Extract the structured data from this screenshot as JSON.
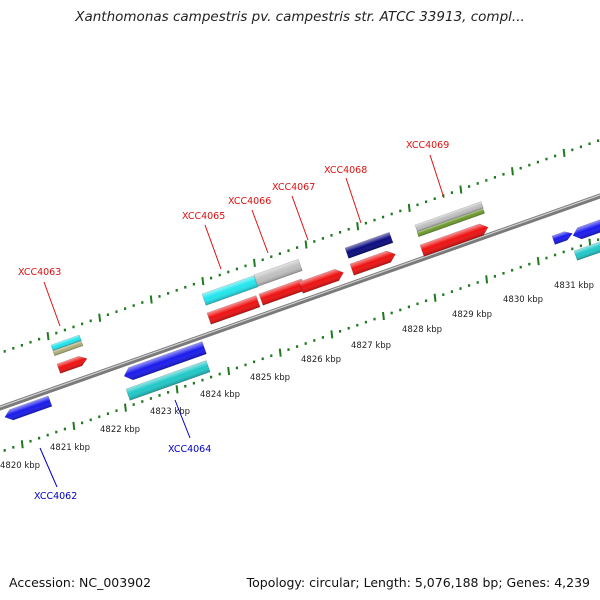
{
  "title": "Xanthomonas campestris pv. campestris str. ATCC 33913, compl...",
  "footer": {
    "accession": "Accession: NC_003902",
    "summary": "Topology: circular; Length: 5,076,188 bp; Genes: 4,239"
  },
  "colors": {
    "backbone": "#8c8c8c",
    "tick_major": "#1f7a1f",
    "tick_minor": "#1f7a1f",
    "forward_label": "#dd1111",
    "reverse_label": "#0000cc",
    "cds": "#ee1111",
    "gene_forward": "#22e6ee",
    "gene_reverse": "#1a1aee",
    "cyan_reverse": "#20c8c8",
    "dark_blue": "#0a0a80",
    "gray": "#c0c0c0",
    "olive": "#b0ad78",
    "green": "#6a9a2a"
  },
  "scale": {
    "labels": [
      "4820 kbp",
      "4821 kbp",
      "4822 kbp",
      "4823 kbp",
      "4824 kbp",
      "4825 kbp",
      "4826 kbp",
      "4827 kbp",
      "4828 kbp",
      "4829 kbp",
      "4830 kbp",
      "4831 kbp"
    ]
  },
  "genes_forward": [
    "XCC4063",
    "XCC4065",
    "XCC4066",
    "XCC4067",
    "XCC4068",
    "XCC4069"
  ],
  "genes_reverse": [
    "XCC4062",
    "XCC4064"
  ]
}
